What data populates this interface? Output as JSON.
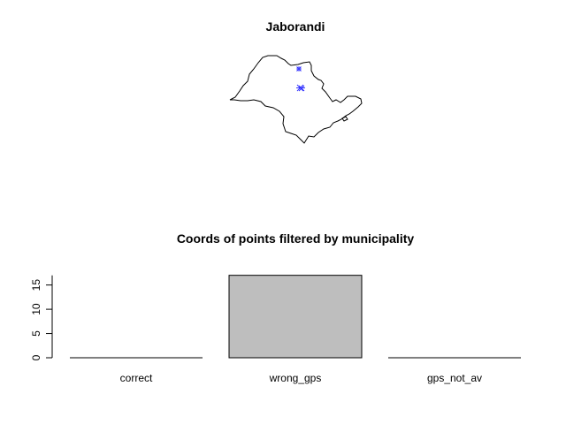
{
  "map_panel": {
    "title": "Jaborandi",
    "outline_color": "#000000",
    "marker_color": "#3333ff"
  },
  "chart_data": {
    "type": "bar",
    "title": "Coords of points filtered by municipality",
    "xlabel": "",
    "ylabel": "",
    "categories": [
      "correct",
      "wrong_gps",
      "gps_not_av"
    ],
    "values": [
      0,
      17,
      0
    ],
    "ylim": [
      0,
      17
    ],
    "yticks": [
      0,
      5,
      10,
      15
    ],
    "bar_fill": "#bebebe",
    "bar_stroke": "#000000",
    "grid": false,
    "legend": "none"
  }
}
